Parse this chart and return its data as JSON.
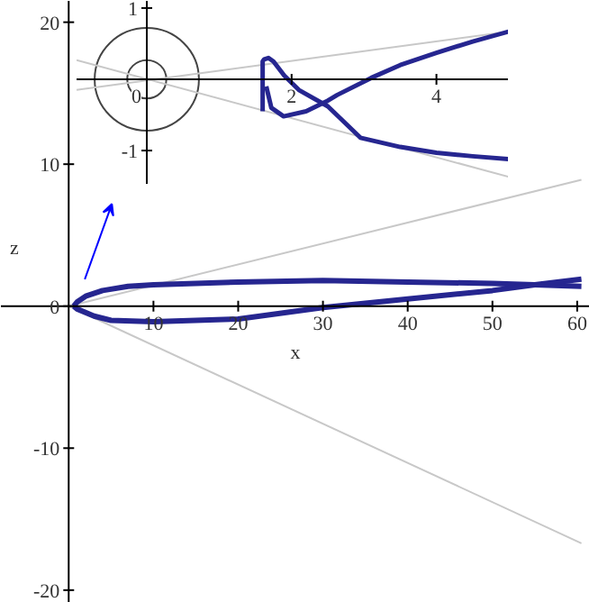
{
  "chart_data": [
    {
      "type": "line",
      "xlabel": "x",
      "ylabel": "z",
      "xlim": [
        -8,
        61.5
      ],
      "ylim": [
        -20.9,
        21.5
      ],
      "xticks": [
        10,
        20,
        30,
        40,
        50,
        60
      ],
      "yticks": [
        -20,
        -10,
        0,
        10,
        20
      ],
      "marker": "none",
      "line_style": "solid",
      "series": [
        {
          "color": "#c8c8c8",
          "x": [
            0,
            60.5
          ],
          "values": [
            0,
            8.9
          ]
        },
        {
          "color": "#c8c8c8",
          "x": [
            0,
            60.5
          ],
          "values": [
            0,
            -16.7
          ]
        },
        {
          "color": "#262690",
          "x": [
            0.6,
            1,
            2,
            4,
            7,
            10,
            20,
            30,
            40,
            50,
            55,
            60.5
          ],
          "values": [
            0,
            0.3,
            0.7,
            1.1,
            1.4,
            1.5,
            1.7,
            1.8,
            1.7,
            1.6,
            1.5,
            1.4
          ]
        },
        {
          "color": "#262690",
          "x": [
            0.6,
            1,
            3,
            5,
            10,
            20,
            30,
            40,
            50,
            55,
            60.5
          ],
          "values": [
            0,
            -0.2,
            -0.7,
            -1.0,
            -1.1,
            -0.9,
            -0.1,
            0.5,
            1.1,
            1.5,
            1.9
          ]
        }
      ]
    },
    {
      "type": "line",
      "xlim": [
        -0.97,
        5
      ],
      "ylim": [
        -1.48,
        1.1
      ],
      "xticks": [
        0,
        2,
        4
      ],
      "yticks": [
        -1,
        1
      ],
      "marker": "none",
      "line_style": "solid",
      "series": [
        {
          "color": "#c8c8c8",
          "x": [
            -0.97,
            5
          ],
          "values": [
            0.27,
            -1.37
          ]
        },
        {
          "color": "#c8c8c8",
          "x": [
            -0.97,
            5
          ],
          "values": [
            -0.15,
            0.67
          ]
        },
        {
          "color": "#262690",
          "x": [
            1.6,
            1.6,
            1.62,
            1.68,
            1.75,
            1.9,
            2.1,
            2.5,
            2.95,
            3.5,
            4,
            4.5,
            5
          ],
          "values": [
            -0.45,
            0.25,
            0.28,
            0.3,
            0.25,
            0.05,
            -0.15,
            -0.38,
            -0.82,
            -0.95,
            -1.03,
            -1.08,
            -1.12
          ]
        },
        {
          "color": "#262690",
          "x": [
            1.65,
            1.72,
            1.89,
            2.2,
            2.5,
            2.63,
            3.1,
            3.5,
            4,
            4.5,
            5
          ],
          "values": [
            -0.1,
            -0.4,
            -0.52,
            -0.45,
            -0.3,
            -0.22,
            0.02,
            0.2,
            0.37,
            0.53,
            0.67
          ]
        }
      ]
    }
  ]
}
